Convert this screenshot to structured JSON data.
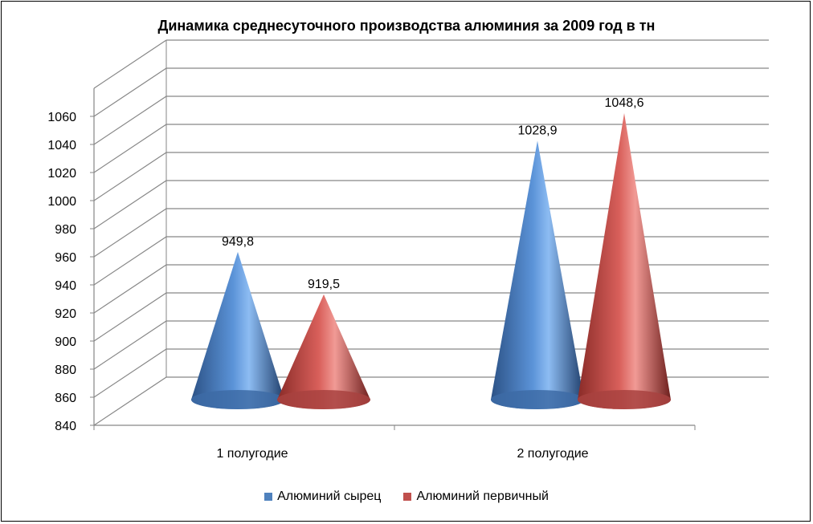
{
  "chart_data": {
    "type": "bar",
    "title": "Динамика  среднесуточного  производства алюминия за 2009 год  в тн",
    "xlabel": "",
    "ylabel": "",
    "categories": [
      "1 полугодие",
      "2 полугодие"
    ],
    "series": [
      {
        "name": "Алюминий сырец",
        "values": [
          949.8,
          1028.9
        ],
        "labels": [
          "949,8",
          "1028,9"
        ],
        "color": "#4f81bd"
      },
      {
        "name": "Алюминий первичный",
        "values": [
          919.5,
          1048.6
        ],
        "labels": [
          "919,5",
          "1048,6"
        ],
        "color": "#c0504d"
      }
    ],
    "ylim": [
      840,
      1060
    ],
    "yticks": [
      "840",
      "860",
      "880",
      "900",
      "920",
      "940",
      "960",
      "980",
      "1000",
      "1020",
      "1040",
      "1060"
    ],
    "shape": "cone",
    "grid": true,
    "legend": "bottom"
  }
}
